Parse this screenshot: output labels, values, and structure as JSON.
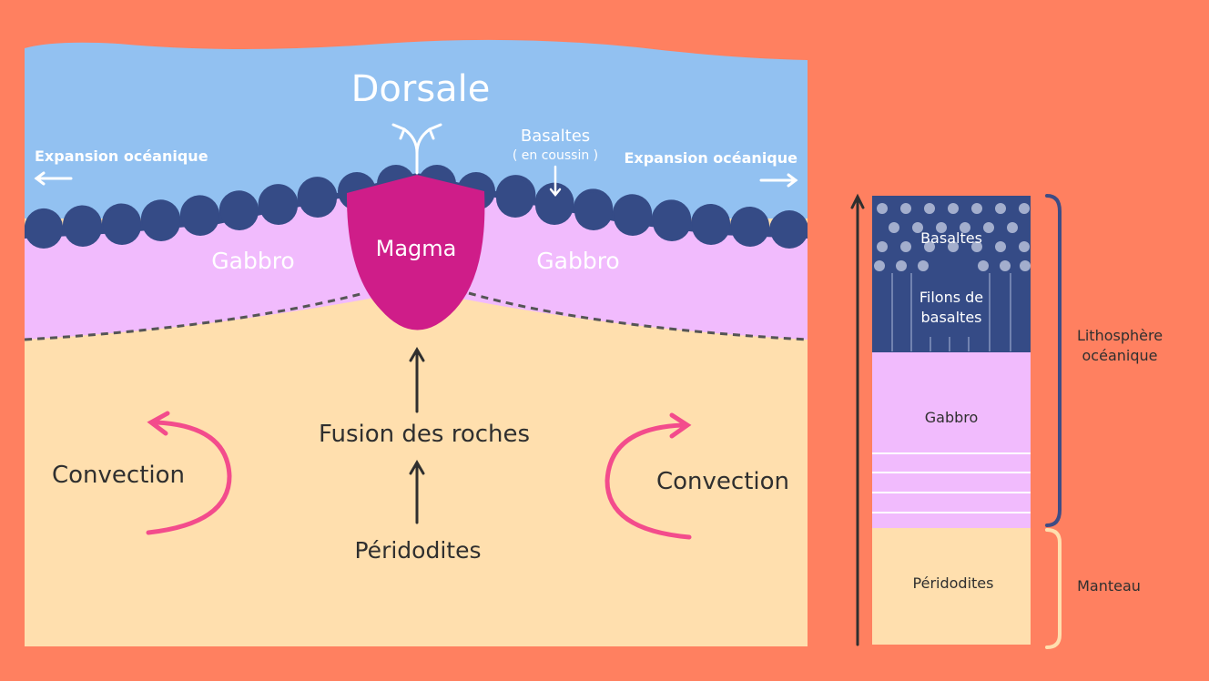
{
  "colors": {
    "background": "#FF8060",
    "ocean": "#92C1F1",
    "basalt": "#354B86",
    "gabbro": "#F1BBFD",
    "mantle": "#FFDFAE",
    "magma": "#CF1D89",
    "convection_arrow": "#F34C8C",
    "dark_text": "#2F2F2F",
    "white": "#FFFFFF",
    "bracket": "#3E4C85",
    "mantle_bracket": "#FFDFAE"
  },
  "cross_section": {
    "title": "Dorsale",
    "expansion_left": "Expansion océanique",
    "expansion_right": "Expansion océanique",
    "basalts_label": "Basaltes",
    "basalts_sublabel": "( en coussin )",
    "gabbro_left": "Gabbro",
    "gabbro_right": "Gabbro",
    "magma": "Magma",
    "fusion": "Fusion des roches",
    "peridotites": "Péridodites",
    "convection_left": "Convection",
    "convection_right": "Convection"
  },
  "column": {
    "basalts": "Basaltes",
    "dikes_line1": "Filons de",
    "dikes_line2": "basaltes",
    "gabbro": "Gabbro",
    "peridotites": "Péridodites",
    "lithosphere_line1": "Lithosphère",
    "lithosphere_line2": "océanique",
    "mantle": "Manteau"
  }
}
